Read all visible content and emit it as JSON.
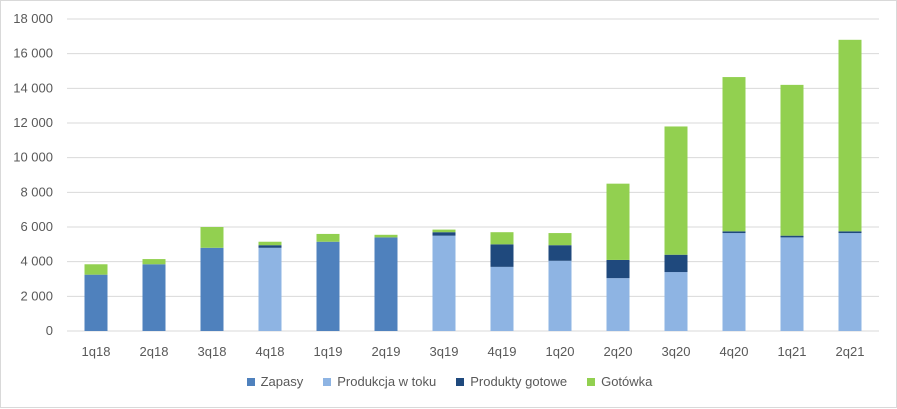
{
  "chart_data": {
    "type": "bar",
    "stacked": true,
    "categories": [
      "1q18",
      "2q18",
      "3q18",
      "4q18",
      "1q19",
      "2q19",
      "3q19",
      "4q19",
      "1q20",
      "2q20",
      "3q20",
      "4q20",
      "1q21",
      "2q21"
    ],
    "ylim": [
      0,
      18000
    ],
    "yticks": [
      0,
      2000,
      4000,
      6000,
      8000,
      10000,
      12000,
      14000,
      16000,
      18000
    ],
    "ytick_labels": [
      "0",
      "2 000",
      "4 000",
      "6 000",
      "8 000",
      "10 000",
      "12 000",
      "14 000",
      "16 000",
      "18 000"
    ],
    "grid": true,
    "legend_position": "bottom",
    "series": [
      {
        "name": "Zapasy",
        "color": "#4f81bd",
        "values": [
          3250,
          3850,
          4800,
          0,
          5150,
          5400,
          0,
          0,
          0,
          0,
          0,
          0,
          0,
          0
        ]
      },
      {
        "name": "Produkcja w toku",
        "color": "#8eb4e3",
        "values": [
          0,
          0,
          0,
          4800,
          0,
          0,
          5500,
          3700,
          4050,
          3050,
          3400,
          5650,
          5400,
          5650
        ]
      },
      {
        "name": "Produkty gotowe",
        "color": "#1f497d",
        "values": [
          0,
          0,
          0,
          150,
          0,
          0,
          200,
          1300,
          900,
          1050,
          1000,
          100,
          100,
          100
        ]
      },
      {
        "name": "Gotówka",
        "color": "#92d050",
        "values": [
          600,
          300,
          1200,
          200,
          450,
          150,
          150,
          700,
          700,
          4400,
          7400,
          8900,
          8700,
          11050
        ]
      }
    ]
  }
}
